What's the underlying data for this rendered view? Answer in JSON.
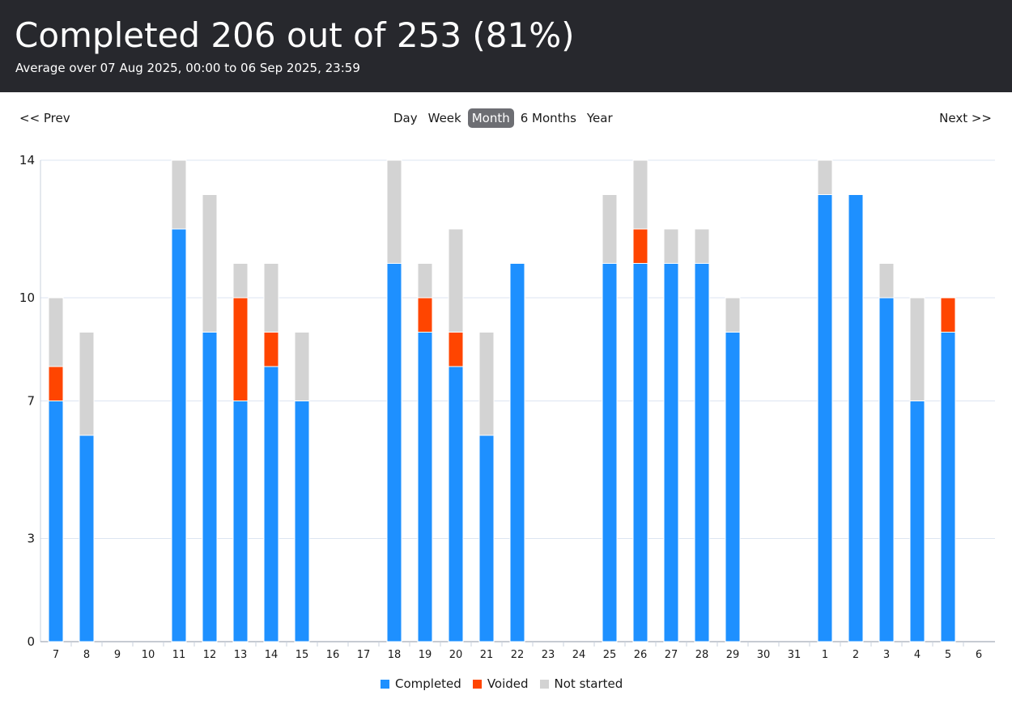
{
  "header": {
    "title": "Completed 206 out of 253 (81%)",
    "subtitle": "Average over 07 Aug 2025, 00:00 to 06 Sep 2025, 23:59"
  },
  "nav": {
    "prev_label": "<< Prev",
    "next_label": "Next >>",
    "tabs": [
      {
        "label": "Day",
        "active": false
      },
      {
        "label": "Week",
        "active": false
      },
      {
        "label": "Month",
        "active": true
      },
      {
        "label": "6 Months",
        "active": false
      },
      {
        "label": "Year",
        "active": false
      }
    ]
  },
  "chart_data": {
    "type": "bar",
    "stacked": true,
    "categories": [
      "7",
      "8",
      "9",
      "10",
      "11",
      "12",
      "13",
      "14",
      "15",
      "16",
      "17",
      "18",
      "19",
      "20",
      "21",
      "22",
      "23",
      "24",
      "25",
      "26",
      "27",
      "28",
      "29",
      "30",
      "31",
      "1",
      "2",
      "3",
      "4",
      "5",
      "6"
    ],
    "series": [
      {
        "name": "Completed",
        "color": "#1e90ff",
        "values": [
          7,
          6,
          0,
          0,
          12,
          9,
          7,
          8,
          7,
          0,
          0,
          11,
          9,
          8,
          6,
          11,
          0,
          0,
          11,
          11,
          11,
          11,
          9,
          0,
          0,
          13,
          13,
          10,
          7,
          9,
          0
        ]
      },
      {
        "name": "Voided",
        "color": "#ff4500",
        "values": [
          1,
          0,
          0,
          0,
          0,
          0,
          3,
          1,
          0,
          0,
          0,
          0,
          1,
          1,
          0,
          0,
          0,
          0,
          0,
          1,
          0,
          0,
          0,
          0,
          0,
          0,
          0,
          0,
          0,
          1,
          0
        ]
      },
      {
        "name": "Not started",
        "color": "#d3d3d3",
        "values": [
          2,
          3,
          0,
          0,
          2,
          4,
          1,
          2,
          2,
          0,
          0,
          3,
          1,
          3,
          3,
          0,
          0,
          0,
          2,
          2,
          1,
          1,
          1,
          0,
          0,
          1,
          0,
          1,
          3,
          0,
          0
        ]
      }
    ],
    "y_ticks": [
      "0",
      "3",
      "7",
      "10",
      "14"
    ],
    "ylim": [
      0,
      14
    ],
    "grid": true,
    "legend_position": "bottom"
  }
}
